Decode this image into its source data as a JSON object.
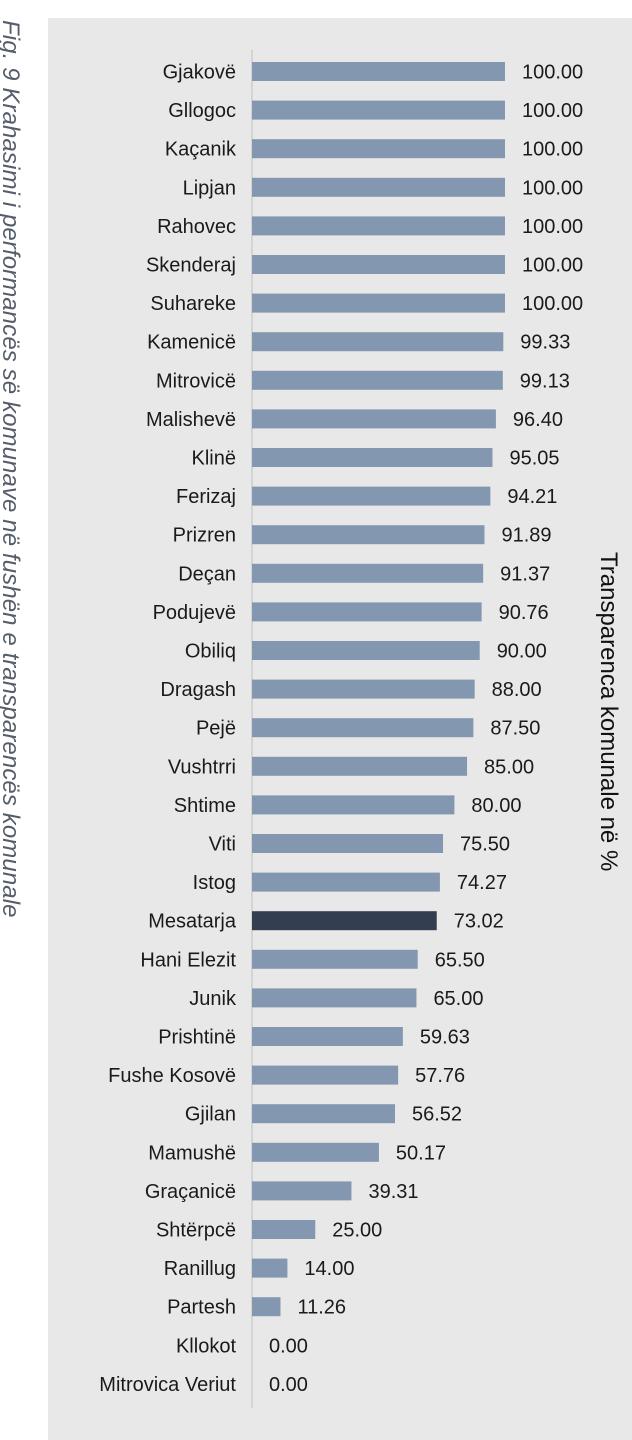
{
  "caption": "Fig. 9 Krahasimi i performancës së komunave në fushën e transparencës komunale",
  "chart_data": {
    "type": "bar",
    "orientation": "horizontal",
    "title": "",
    "xlabel": "",
    "ylabel": "Transparenca komunale në %",
    "xlim": [
      0,
      100
    ],
    "grid": false,
    "legend": "none",
    "categories": [
      "Gjakovë",
      "Gllogoc",
      "Kaçanik",
      "Lipjan",
      "Rahovec",
      "Skenderaj",
      "Suhareke",
      "Kamenicë",
      "Mitrovicë",
      "Malishevë",
      "Klinë",
      "Ferizaj",
      "Prizren",
      "Deçan",
      "Podujevë",
      "Obiliq",
      "Dragash",
      "Pejë",
      "Vushtrri",
      "Shtime",
      "Viti",
      "Istog",
      "Mesatarja",
      "Hani Elezit",
      "Junik",
      "Prishtinë",
      "Fushe Kosovë",
      "Gjilan",
      "Mamushë",
      "Graçanicë",
      "Shtërpcë",
      "Ranillug",
      "Partesh",
      "Kllokot",
      "Mitrovica Veriut"
    ],
    "values": [
      100.0,
      100.0,
      100.0,
      100.0,
      100.0,
      100.0,
      100.0,
      99.33,
      99.13,
      96.4,
      95.05,
      94.21,
      91.89,
      91.37,
      90.76,
      90.0,
      88.0,
      87.5,
      85.0,
      80.0,
      75.5,
      74.27,
      73.02,
      65.5,
      65.0,
      59.63,
      57.76,
      56.52,
      50.17,
      39.31,
      25.0,
      14.0,
      11.26,
      0.0,
      0.0
    ],
    "value_labels": [
      "100.00",
      "100.00",
      "100.00",
      "100.00",
      "100.00",
      "100.00",
      "100.00",
      "99.33",
      "99.13",
      "96.40",
      "95.05",
      "94.21",
      "91.89",
      "91.37",
      "90.76",
      "90.00",
      "88.00",
      "87.50",
      "85.00",
      "80.00",
      "75.50",
      "74.27",
      "73.02",
      "65.50",
      "65.00",
      "59.63",
      "57.76",
      "56.52",
      "50.17",
      "39.31",
      "25.00",
      "14.00",
      "11.26",
      "0.00",
      "0.00"
    ],
    "highlight_category": "Mesatarja",
    "colors": {
      "bar": "#8497b0",
      "highlight": "#333f50",
      "axis": "#bfbfbf",
      "background": "#e8e8e8"
    }
  }
}
